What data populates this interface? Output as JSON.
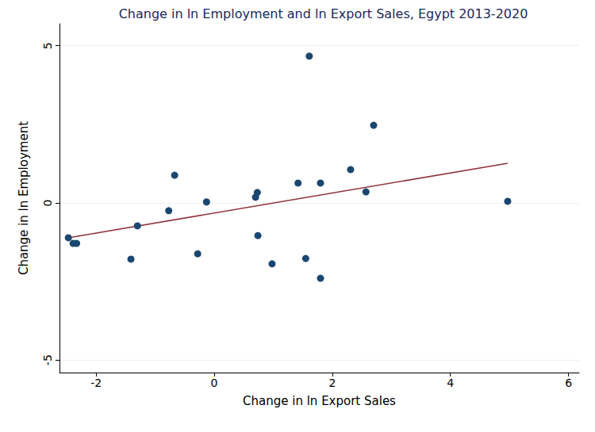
{
  "chart_data": {
    "type": "scatter",
    "title": "Change in ln Employment and ln Export Sales, Egypt 2013-2020",
    "x_label": "Change in ln Export Sales",
    "y_label": "Change in ln Employment",
    "xlim": [
      -2.62,
      6.18
    ],
    "ylim": [
      -5.4,
      5.7
    ],
    "xticks": [
      -2,
      0,
      2,
      4,
      6
    ],
    "yticks": [
      -5,
      0,
      5
    ],
    "grid": true,
    "series": [
      {
        "type": "scatter",
        "color": "#1a476f",
        "marker": "circle",
        "x": [
          -2.47,
          -2.39,
          -2.33,
          -1.41,
          -1.3,
          -0.77,
          -0.67,
          -0.28,
          -0.13,
          0.7,
          0.73,
          0.74,
          0.98,
          1.42,
          1.55,
          1.61,
          1.8,
          1.8,
          2.31,
          2.57,
          2.7,
          4.97
        ],
        "values": [
          -1.11,
          -1.29,
          -1.29,
          -1.79,
          -0.73,
          -0.25,
          0.88,
          -1.62,
          0.03,
          0.18,
          0.33,
          -1.04,
          -1.94,
          0.63,
          -1.77,
          4.67,
          -2.4,
          0.63,
          1.06,
          0.35,
          2.47,
          0.05
        ]
      },
      {
        "type": "line",
        "color": "#90353b",
        "line_style": "solid",
        "x": [
          -2.47,
          4.97
        ],
        "values": [
          -1.11,
          1.26
        ]
      }
    ]
  }
}
